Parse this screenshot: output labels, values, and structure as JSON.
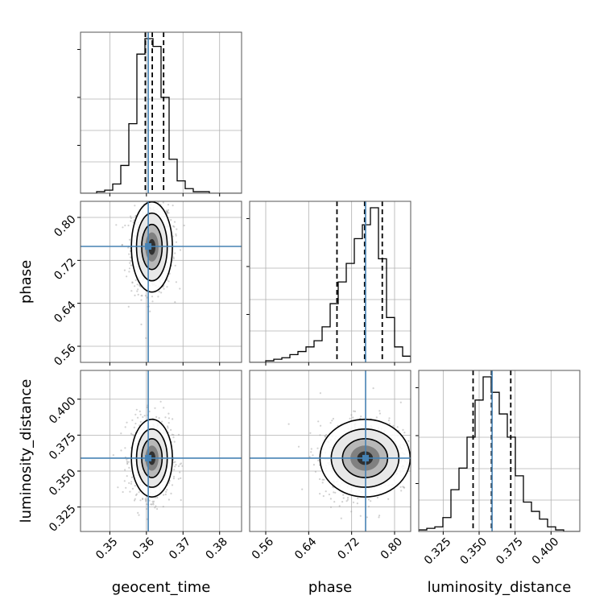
{
  "colors": {
    "truth": "#4682b4",
    "histogram": "#000000",
    "quantile_line": "#000000",
    "grid": "#b0b0b0",
    "contour": "#000000"
  },
  "chart_data": {
    "type": "corner",
    "parameters": [
      "geocent_time",
      "phase",
      "luminosity_distance"
    ],
    "axis_labels": [
      "geocent_time",
      "phase",
      "luminosity_distance"
    ],
    "ranges": [
      [
        0.342,
        0.386
      ],
      [
        0.53,
        0.83
      ],
      [
        0.308,
        0.42
      ]
    ],
    "ticks": [
      {
        "values": [
          0.35,
          0.36,
          0.37,
          0.38
        ],
        "labels": [
          "0.35",
          "0.36",
          "0.37",
          "0.38"
        ]
      },
      {
        "values": [
          0.56,
          0.64,
          0.72,
          0.8
        ],
        "labels": [
          "0.56",
          "0.64",
          "0.72",
          "0.80"
        ]
      },
      {
        "values": [
          0.325,
          0.35,
          0.375,
          0.4
        ],
        "labels": [
          "0.325",
          "0.350",
          "0.375",
          "0.400"
        ]
      }
    ],
    "truths": [
      0.3605,
      0.746,
      0.359
    ],
    "quantiles": [
      [
        0.3597,
        0.3616,
        0.3647
      ],
      [
        0.6927,
        0.7442,
        0.7771
      ],
      [
        0.3458,
        0.3586,
        0.372
      ]
    ],
    "histograms": [
      {
        "bin_edges": [
          0.342,
          0.3442,
          0.3464,
          0.3486,
          0.3508,
          0.353,
          0.3552,
          0.3574,
          0.3596,
          0.3618,
          0.364,
          0.3662,
          0.3684,
          0.3706,
          0.3728,
          0.375,
          0.3772,
          0.3794,
          0.3816,
          0.3838,
          0.386
        ],
        "counts": [
          0,
          0,
          1,
          2,
          6,
          18,
          45,
          90,
          100,
          95,
          62,
          22,
          8,
          3,
          1,
          1,
          0,
          0,
          0,
          0
        ]
      },
      {
        "bin_edges": [
          0.53,
          0.545,
          0.56,
          0.575,
          0.59,
          0.605,
          0.62,
          0.635,
          0.65,
          0.665,
          0.68,
          0.695,
          0.71,
          0.725,
          0.74,
          0.755,
          0.77,
          0.785,
          0.8,
          0.815,
          0.83
        ],
        "counts": [
          0,
          0,
          1,
          2,
          3,
          5,
          7,
          10,
          14,
          23,
          38,
          52,
          64,
          80,
          89,
          100,
          67,
          29,
          10,
          4
        ]
      },
      {
        "bin_edges": [
          0.308,
          0.3136,
          0.3192,
          0.3248,
          0.3304,
          0.336,
          0.3416,
          0.3472,
          0.3528,
          0.3584,
          0.364,
          0.3696,
          0.3752,
          0.3808,
          0.3864,
          0.392,
          0.3976,
          0.4032,
          0.4088,
          0.4144,
          0.42
        ],
        "counts": [
          1,
          2,
          3,
          9,
          27,
          41,
          61,
          85,
          100,
          90,
          76,
          61,
          36,
          19,
          13,
          8,
          3,
          1,
          0,
          0
        ]
      }
    ],
    "densities": [
      {
        "pair": [
          0,
          1
        ],
        "mean": [
          0.3615,
          0.745
        ],
        "sd": [
          0.0028,
          0.042
        ],
        "corr": 0.05
      },
      {
        "pair": [
          0,
          2
        ],
        "mean": [
          0.3615,
          0.359
        ],
        "sd": [
          0.0028,
          0.0135
        ],
        "corr": 0.0
      },
      {
        "pair": [
          1,
          2
        ],
        "mean": [
          0.745,
          0.359
        ],
        "sd": [
          0.042,
          0.0135
        ],
        "corr": 0.1
      }
    ],
    "contour_levels": [
      "1-sigma",
      "1.5-sigma",
      "2-sigma"
    ],
    "grid": true
  }
}
